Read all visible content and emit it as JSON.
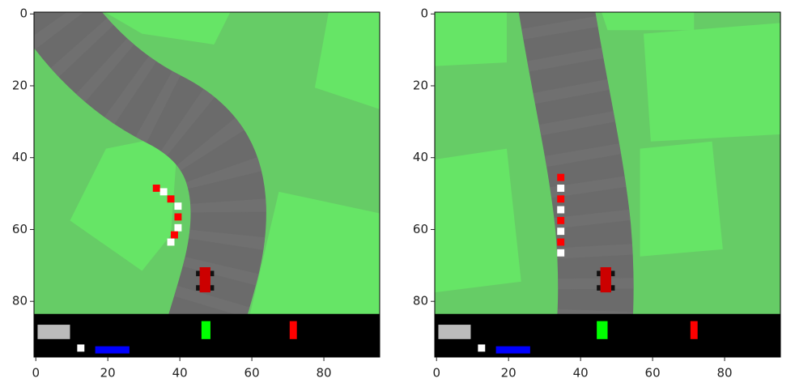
{
  "chart_data": [
    {
      "type": "image",
      "xlim": [
        -0.5,
        95.5
      ],
      "ylim": [
        95.5,
        -0.5
      ],
      "xticks": [
        0,
        20,
        40,
        60,
        80
      ],
      "yticks": [
        0,
        20,
        40,
        60,
        80
      ]
    },
    {
      "type": "image",
      "xlim": [
        -0.5,
        95.5
      ],
      "ylim": [
        95.5,
        -0.5
      ],
      "xticks": [
        0,
        20,
        40,
        60,
        80
      ],
      "yticks": [
        0,
        20,
        40,
        60,
        80
      ]
    }
  ]
}
